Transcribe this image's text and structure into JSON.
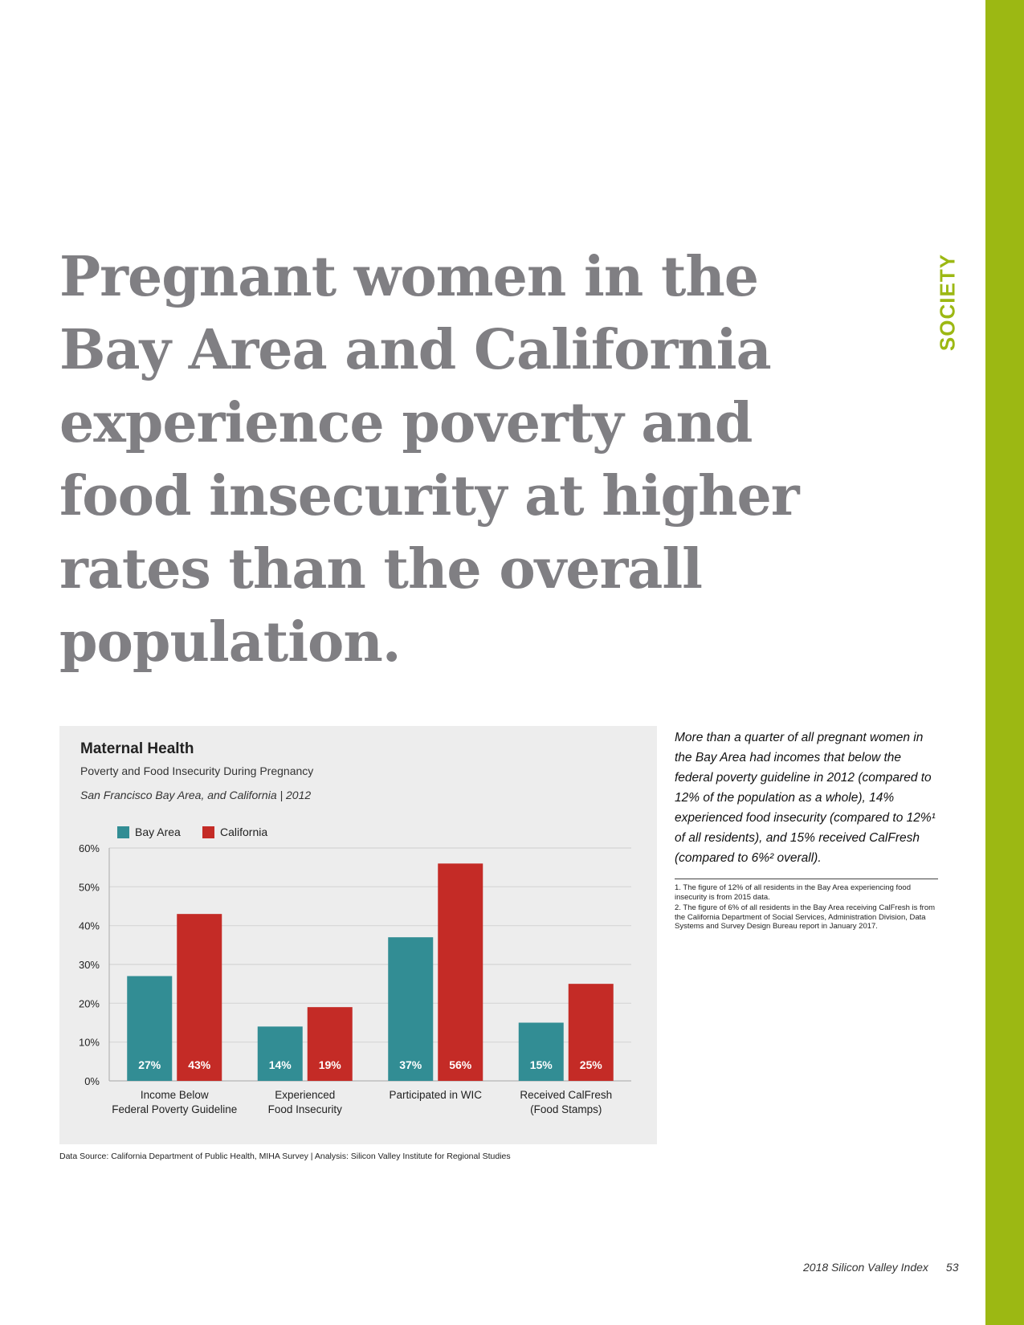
{
  "page": {
    "section_label": "SOCIETY",
    "accent_color": "#9cb813",
    "headline": "Pregnant women in the Bay Area and California experience poverty and food insecurity at higher rates than the overall population.",
    "footer_publication": "2018 Silicon Valley Index",
    "page_number": "53"
  },
  "chart_data": {
    "type": "bar",
    "title": "Maternal Health",
    "subtitle": "Poverty and Food Insecurity During Pregnancy",
    "scope": "San Francisco Bay Area, and California | 2012",
    "categories": [
      [
        "Income Below",
        "Federal Poverty Guideline"
      ],
      [
        "Experienced",
        "Food Insecurity"
      ],
      [
        "Participated in WIC"
      ],
      [
        "Received CalFresh",
        "(Food Stamps)"
      ]
    ],
    "series": [
      {
        "name": "Bay Area",
        "color": "#328d94",
        "values": [
          27,
          14,
          37,
          15
        ],
        "labels": [
          "27%",
          "14%",
          "37%",
          "15%"
        ]
      },
      {
        "name": "California",
        "color": "#c42b26",
        "values": [
          43,
          19,
          56,
          25
        ],
        "labels": [
          "43%",
          "19%",
          "56%",
          "25%"
        ]
      }
    ],
    "ylim": [
      0,
      60
    ],
    "yticks": [
      "0%",
      "10%",
      "20%",
      "30%",
      "40%",
      "50%",
      "60%"
    ],
    "xlabel": "",
    "ylabel": "",
    "grid": true,
    "legend": "top-left",
    "source": "Data Source: California Department of Public Health, MIHA Survey | Analysis: Silicon Valley Institute for Regional Studies"
  },
  "sidebar": {
    "body_text": "More than a quarter of all pregnant women in the Bay Area had incomes that below the federal poverty guideline in 2012 (compared to 12% of the population as a whole), 14% experienced food insecurity (compared to 12%¹ of all residents), and 15% received CalFresh (compared to 6%² overall).",
    "footnotes": [
      "1. The figure of 12% of all residents in the Bay Area experiencing food insecurity is from 2015 data.",
      "2. The figure of 6% of all residents in the Bay Area receiving CalFresh is from the California Department of Social Services, Administration Division, Data Systems and Survey Design Bureau report in January 2017."
    ]
  }
}
